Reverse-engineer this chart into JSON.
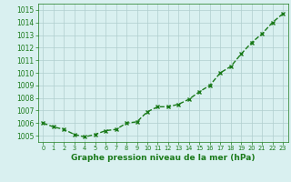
{
  "x": [
    0,
    1,
    2,
    3,
    4,
    5,
    6,
    7,
    8,
    9,
    10,
    11,
    12,
    13,
    14,
    15,
    16,
    17,
    18,
    19,
    20,
    21,
    22,
    23
  ],
  "y": [
    1006.0,
    1005.7,
    1005.5,
    1005.1,
    1004.9,
    1005.1,
    1005.4,
    1005.5,
    1006.0,
    1006.1,
    1006.9,
    1007.3,
    1007.3,
    1007.5,
    1007.9,
    1008.5,
    1009.0,
    1010.0,
    1010.5,
    1011.5,
    1012.4,
    1013.1,
    1014.0,
    1014.7
  ],
  "line_color": "#1a7a1a",
  "marker": "x",
  "marker_color": "#1a7a1a",
  "bg_color": "#d9f0f0",
  "grid_color": "#b0cece",
  "xlabel": "Graphe pression niveau de la mer (hPa)",
  "xlabel_color": "#1a7a1a",
  "tick_color": "#1a7a1a",
  "ylim": [
    1004.5,
    1015.5
  ],
  "yticks": [
    1005,
    1006,
    1007,
    1008,
    1009,
    1010,
    1011,
    1012,
    1013,
    1014,
    1015
  ],
  "xlim": [
    -0.5,
    23.5
  ],
  "xticks": [
    0,
    1,
    2,
    3,
    4,
    5,
    6,
    7,
    8,
    9,
    10,
    11,
    12,
    13,
    14,
    15,
    16,
    17,
    18,
    19,
    20,
    21,
    22,
    23
  ],
  "linewidth": 1.0,
  "markersize": 3,
  "xlabel_fontsize": 6.5,
  "xtick_fontsize": 4.8,
  "ytick_fontsize": 5.5
}
